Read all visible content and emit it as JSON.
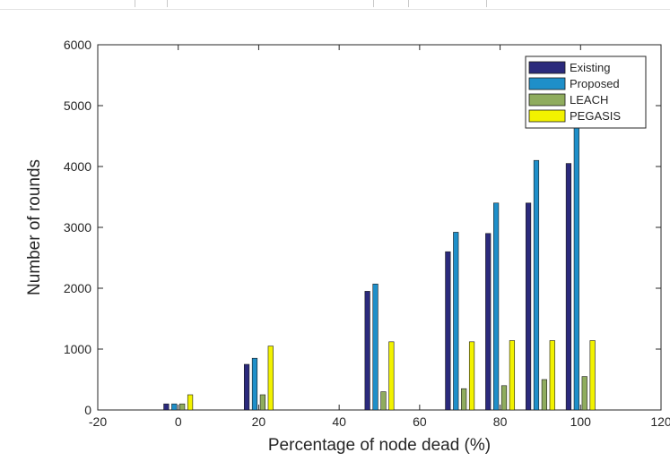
{
  "chart_data": {
    "type": "bar",
    "title": "",
    "xlabel": "Percentage of node dead (%)",
    "ylabel": "Number of rounds",
    "xlim": [
      -20,
      120
    ],
    "ylim": [
      0,
      6000
    ],
    "x_ticks": [
      "-20",
      "0",
      "20",
      "40",
      "60",
      "80",
      "100",
      "120"
    ],
    "y_ticks": [
      "0",
      "1000",
      "2000",
      "3000",
      "4000",
      "5000",
      "6000"
    ],
    "grid": false,
    "legend_position": "top-right",
    "x": [
      0,
      20,
      50,
      70,
      80,
      90,
      100
    ],
    "series": [
      {
        "name": "Existing",
        "color": "#2b2a7c",
        "values": [
          100,
          750,
          1950,
          2600,
          2900,
          3400,
          4050
        ]
      },
      {
        "name": "Proposed",
        "color": "#1e8fc9",
        "values": [
          100,
          850,
          2070,
          2920,
          3400,
          4100,
          4900
        ]
      },
      {
        "name": "LEACH",
        "color": "#8fac5e",
        "values": [
          100,
          250,
          300,
          350,
          400,
          500,
          550
        ]
      },
      {
        "name": "PEGASIS",
        "color": "#f2f200",
        "values": [
          250,
          1050,
          1120,
          1120,
          1140,
          1140,
          1140
        ]
      }
    ]
  }
}
